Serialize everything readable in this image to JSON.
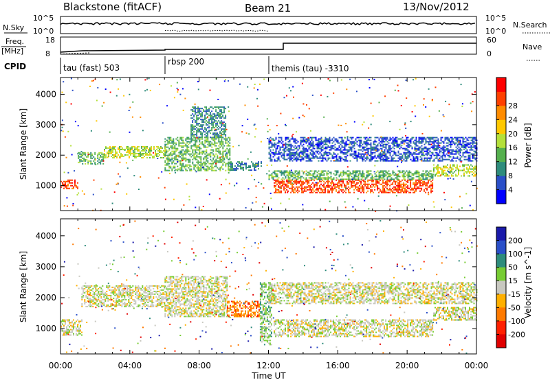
{
  "header": {
    "radar": "Blackstone (fitACF)",
    "beam": "Beam 21",
    "date": "13/Nov/2012"
  },
  "top_panels": {
    "nsky_label": "N.Sky",
    "nsky_ticks": [
      "10^5",
      "10^0"
    ],
    "nsearch_label": "N.Search",
    "freq_label": "Freq.",
    "freq_unit": "[MHz]",
    "freq_ticks": [
      "18",
      "8"
    ],
    "nave_label": "Nave",
    "nave_ticks": [
      "60",
      "0"
    ],
    "cpid_label": "CPID",
    "cpid_segments": [
      {
        "start_hour": 0,
        "label": "tau (fast) 503"
      },
      {
        "start_hour": 6,
        "label": "rbsp 200"
      },
      {
        "start_hour": 12,
        "label": "themis (tau) -3310"
      }
    ]
  },
  "chart_data": [
    {
      "type": "heatmap",
      "panel": "power",
      "ylabel": "Slant Range [km]",
      "ylim": [
        180,
        4550
      ],
      "yticks": [
        1000,
        2000,
        3000,
        4000
      ],
      "colorbar": {
        "label": "Power [dB]",
        "ticks": [
          4,
          8,
          12,
          16,
          20,
          24,
          28
        ],
        "colors": [
          "#0000ff",
          "#2a4fc8",
          "#2e8c7c",
          "#55b04e",
          "#b4e03a",
          "#ffc800",
          "#ff8c00",
          "#ff4000",
          "#ff0000"
        ]
      },
      "bands": [
        {
          "h": [
            0.0,
            1.0
          ],
          "r": [
            900,
            1200
          ],
          "level": 7
        },
        {
          "h": [
            1.0,
            2.5
          ],
          "r": [
            1700,
            2100
          ],
          "level": 3
        },
        {
          "h": [
            2.5,
            6.0
          ],
          "r": [
            1900,
            2300
          ],
          "level": 4
        },
        {
          "h": [
            6.0,
            9.8
          ],
          "r": [
            1500,
            2600
          ],
          "level": 3
        },
        {
          "h": [
            7.5,
            9.5
          ],
          "r": [
            2600,
            3600
          ],
          "level": 2
        },
        {
          "h": [
            9.8,
            11.6
          ],
          "r": [
            1500,
            1800
          ],
          "level": 2
        },
        {
          "h": [
            12.3,
            21.5
          ],
          "r": [
            750,
            1200
          ],
          "level": 7
        },
        {
          "h": [
            12.0,
            21.5
          ],
          "r": [
            1200,
            1500
          ],
          "level": 3
        },
        {
          "h": [
            21.5,
            24.0
          ],
          "r": [
            1300,
            1700
          ],
          "level": 4
        },
        {
          "h": [
            12.0,
            24.0
          ],
          "r": [
            1800,
            2600
          ],
          "level": 1
        }
      ]
    },
    {
      "type": "heatmap",
      "panel": "velocity",
      "ylabel": "Slant Range [km]",
      "xlabel": "Time UT",
      "ylim": [
        180,
        4550
      ],
      "yticks": [
        1000,
        2000,
        3000,
        4000
      ],
      "xticks": [
        "00:00",
        "04:00",
        "08:00",
        "12:00",
        "16:00",
        "20:00",
        "00:00"
      ],
      "colorbar": {
        "label": "Velocity [m s^-1]",
        "ticks": [
          200,
          100,
          50,
          15,
          -15,
          -50,
          -100,
          -200
        ],
        "colors": [
          "#1a1aaa",
          "#2a4fc8",
          "#2e8c7c",
          "#77cc33",
          "#c8c8c0",
          "#ffb000",
          "#ff7a00",
          "#ff2000",
          "#e00000"
        ]
      },
      "bands": [
        {
          "h": [
            0.0,
            1.2
          ],
          "r": [
            800,
            1300
          ],
          "level": 4
        },
        {
          "h": [
            1.2,
            6.0
          ],
          "r": [
            1700,
            2400
          ],
          "level": 4
        },
        {
          "h": [
            6.0,
            9.6
          ],
          "r": [
            1400,
            2700
          ],
          "level": 4
        },
        {
          "h": [
            9.6,
            11.5
          ],
          "r": [
            1400,
            1900
          ],
          "level": 6
        },
        {
          "h": [
            11.5,
            12.2
          ],
          "r": [
            500,
            2500
          ],
          "level": 3
        },
        {
          "h": [
            12.3,
            21.5
          ],
          "r": [
            750,
            1300
          ],
          "level": 4
        },
        {
          "h": [
            12.0,
            24.0
          ],
          "r": [
            1800,
            2500
          ],
          "level": 4
        },
        {
          "h": [
            21.5,
            24.0
          ],
          "r": [
            1300,
            1700
          ],
          "level": 4
        }
      ]
    }
  ]
}
